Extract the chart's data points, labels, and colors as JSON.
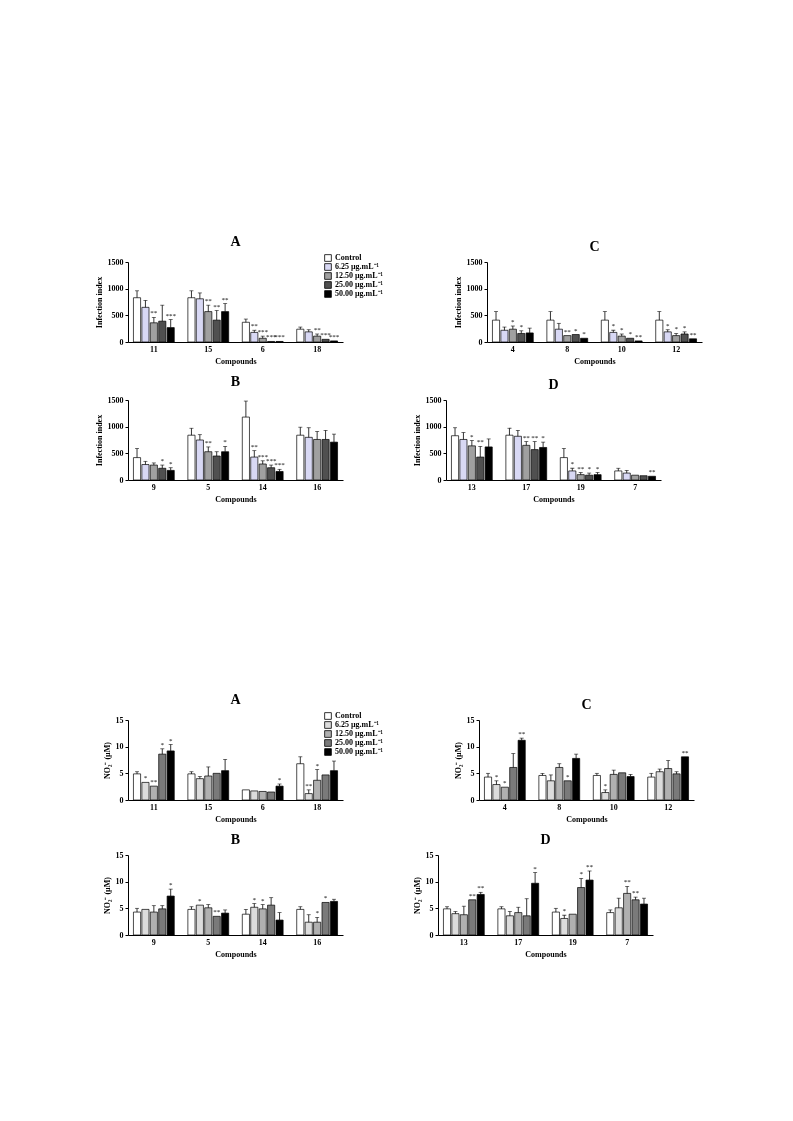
{
  "chart_data": [
    {
      "type": "bar",
      "title": "A",
      "xlabel": "Compounds",
      "ylabel": "Infection index",
      "categories": [
        "11",
        "15",
        "6",
        "18"
      ],
      "ylim": [
        0,
        1500
      ],
      "yticks": [
        0,
        500,
        1000,
        1500
      ],
      "grid": false,
      "legend": "top right",
      "series": [
        {
          "name": "Control",
          "color": "#ffffff",
          "values": [
            830,
            830,
            370,
            240
          ],
          "errors": [
            130,
            130,
            60,
            40
          ],
          "value_labels": [
            null,
            null,
            null,
            null
          ]
        },
        {
          "name": "6.25 µg.mL⁻¹",
          "color": "#d8d8f4",
          "values": [
            650,
            810,
            180,
            190
          ],
          "errors": [
            130,
            110,
            40,
            40
          ],
          "value_labels": [
            null,
            null,
            "**",
            null
          ]
        },
        {
          "name": "12.50 µg.mL⁻¹",
          "color": "#a0a0a0",
          "values": [
            360,
            570,
            70,
            110
          ],
          "errors": [
            100,
            120,
            40,
            40
          ],
          "value_labels": [
            "**",
            "**",
            "***",
            "**"
          ]
        },
        {
          "name": "25.00 µg.mL⁻¹",
          "color": "#505050",
          "values": [
            390,
            410,
            10,
            50
          ],
          "errors": [
            300,
            180,
            null,
            null
          ],
          "value_labels": [
            null,
            "**",
            "***",
            "***"
          ]
        },
        {
          "name": "50.00 µg.mL⁻¹",
          "color": "#000000",
          "values": [
            270,
            570,
            10,
            20
          ],
          "errors": [
            150,
            150,
            null,
            null
          ],
          "value_labels": [
            "***",
            "**",
            "***",
            "***"
          ]
        }
      ]
    },
    {
      "type": "bar",
      "title": "C",
      "xlabel": "Compounds",
      "ylabel": "Infection index",
      "categories": [
        "4",
        "8",
        "10",
        "12"
      ],
      "ylim": [
        0,
        1500
      ],
      "yticks": [
        0,
        500,
        1000,
        1500
      ],
      "grid": false,
      "series": [
        {
          "color": "#ffffff",
          "values": [
            410,
            410,
            410,
            410
          ],
          "errors": [
            160,
            160,
            160,
            160
          ],
          "value_labels": [
            null,
            null,
            null,
            null
          ]
        },
        {
          "color": "#d8d8f4",
          "values": [
            220,
            240,
            180,
            190
          ],
          "errors": [
            60,
            110,
            40,
            40
          ],
          "value_labels": [
            null,
            null,
            "*",
            "*"
          ]
        },
        {
          "color": "#a0a0a0",
          "values": [
            240,
            120,
            110,
            120
          ],
          "errors": [
            60,
            null,
            40,
            40
          ],
          "value_labels": [
            "*",
            "**",
            "*",
            "*"
          ]
        },
        {
          "color": "#505050",
          "values": [
            160,
            140,
            70,
            150
          ],
          "errors": [
            50,
            null,
            null,
            40
          ],
          "value_labels": [
            "*",
            "*",
            "*",
            "*"
          ]
        },
        {
          "color": "#000000",
          "values": [
            170,
            70,
            20,
            60
          ],
          "errors": [
            90,
            null,
            null,
            null
          ],
          "value_labels": [
            null,
            "*",
            "**",
            "**"
          ]
        }
      ]
    },
    {
      "type": "bar",
      "title": "B",
      "xlabel": "Compounds",
      "ylabel": "Infection index",
      "categories": [
        "9",
        "5",
        "14",
        "16"
      ],
      "ylim": [
        0,
        1500
      ],
      "yticks": [
        0,
        500,
        1000,
        1500
      ],
      "grid": false,
      "series": [
        {
          "color": "#ffffff",
          "values": [
            420,
            840,
            1180,
            840
          ],
          "errors": [
            170,
            130,
            300,
            150
          ],
          "value_labels": [
            null,
            null,
            null,
            null
          ]
        },
        {
          "color": "#d8d8f4",
          "values": [
            290,
            750,
            430,
            800
          ],
          "errors": [
            60,
            100,
            120,
            180
          ],
          "value_labels": [
            null,
            null,
            "**",
            null
          ]
        },
        {
          "color": "#a0a0a0",
          "values": [
            280,
            530,
            300,
            760
          ],
          "errors": [
            40,
            90,
            60,
            150
          ],
          "value_labels": [
            null,
            "**",
            "***",
            null
          ]
        },
        {
          "color": "#505050",
          "values": [
            220,
            450,
            230,
            760
          ],
          "errors": [
            60,
            80,
            50,
            170
          ],
          "value_labels": [
            "*",
            null,
            "***",
            null
          ]
        },
        {
          "color": "#000000",
          "values": [
            180,
            530,
            160,
            710
          ],
          "errors": [
            50,
            100,
            40,
            150
          ],
          "value_labels": [
            "*",
            "*",
            "***",
            null
          ]
        }
      ]
    },
    {
      "type": "bar",
      "title": "D",
      "xlabel": "Compounds",
      "ylabel": "Infection index",
      "categories": [
        "13",
        "17",
        "19",
        "7"
      ],
      "ylim": [
        0,
        1500
      ],
      "yticks": [
        0,
        500,
        1000,
        1500
      ],
      "grid": false,
      "series": [
        {
          "color": "#ffffff",
          "values": [
            830,
            840,
            420,
            170
          ],
          "errors": [
            150,
            130,
            170,
            50
          ],
          "value_labels": [
            null,
            null,
            null,
            null
          ]
        },
        {
          "color": "#d8d8f4",
          "values": [
            760,
            820,
            170,
            130
          ],
          "errors": [
            130,
            110,
            50,
            50
          ],
          "value_labels": [
            null,
            null,
            "*",
            null
          ]
        },
        {
          "color": "#a0a0a0",
          "values": [
            640,
            650,
            100,
            90
          ],
          "errors": [
            100,
            70,
            40,
            null
          ],
          "value_labels": [
            "*",
            "**",
            "**",
            null
          ]
        },
        {
          "color": "#505050",
          "values": [
            430,
            570,
            90,
            80
          ],
          "errors": [
            200,
            150,
            40,
            null
          ],
          "value_labels": [
            "**",
            "**",
            "*",
            null
          ]
        },
        {
          "color": "#000000",
          "values": [
            620,
            610,
            100,
            70
          ],
          "errors": [
            150,
            100,
            40,
            null
          ],
          "value_labels": [
            null,
            "*",
            "*",
            "**"
          ]
        }
      ]
    },
    {
      "type": "bar",
      "title": "A",
      "xlabel": "Compounds",
      "ylabel": "NO₂⁻ (µM)",
      "categories": [
        "11",
        "15",
        "6",
        "18"
      ],
      "ylim": [
        0,
        15
      ],
      "yticks": [
        0,
        5,
        10,
        15
      ],
      "grid": false,
      "legend": "top right",
      "series": [
        {
          "name": "Control",
          "color": "#ffffff",
          "values": [
            4.9,
            4.9,
            1.9,
            6.8
          ],
          "errors": [
            0.4,
            0.4,
            null,
            1.3
          ],
          "value_labels": [
            null,
            null,
            null,
            null
          ]
        },
        {
          "name": "6.25 µg.mL⁻¹",
          "color": "#dcdcdc",
          "values": [
            3.3,
            4.0,
            1.7,
            1.2
          ],
          "errors": [
            null,
            0.4,
            null,
            0.7
          ],
          "value_labels": [
            "*",
            null,
            null,
            "**"
          ]
        },
        {
          "name": "12.50 µg.mL⁻¹",
          "color": "#b0b0b0",
          "values": [
            2.6,
            4.5,
            1.6,
            3.7
          ],
          "errors": [
            null,
            1.7,
            null,
            2.0
          ],
          "value_labels": [
            "**",
            null,
            null,
            "*"
          ]
        },
        {
          "name": "25.00 µg.mL⁻¹",
          "color": "#7a7a7a",
          "values": [
            8.6,
            5.0,
            1.5,
            4.7
          ],
          "errors": [
            1.0,
            null,
            null,
            null
          ],
          "value_labels": [
            "*",
            null,
            null,
            null
          ]
        },
        {
          "name": "50.00 µg.mL⁻¹",
          "color": "#000000",
          "values": [
            9.2,
            5.5,
            2.6,
            5.5
          ],
          "errors": [
            1.2,
            2.1,
            0.4,
            1.8
          ],
          "value_labels": [
            "*",
            null,
            "*",
            null
          ]
        }
      ]
    },
    {
      "type": "bar",
      "title": "C",
      "xlabel": "Compounds",
      "ylabel": "NO₂⁻ (µM)",
      "categories": [
        "4",
        "8",
        "10",
        "12"
      ],
      "ylim": [
        0,
        15
      ],
      "yticks": [
        0,
        5,
        10,
        15
      ],
      "grid": false,
      "series": [
        {
          "color": "#ffffff",
          "values": [
            4.3,
            4.6,
            4.6,
            4.3
          ],
          "errors": [
            0.7,
            0.4,
            0.4,
            0.7
          ],
          "value_labels": [
            null,
            null,
            null,
            null
          ]
        },
        {
          "color": "#dcdcdc",
          "values": [
            2.9,
            3.6,
            1.4,
            5.3
          ],
          "errors": [
            0.7,
            1.1,
            0.5,
            0.5
          ],
          "value_labels": [
            "*",
            null,
            "*",
            null
          ]
        },
        {
          "color": "#b0b0b0",
          "values": [
            2.4,
            6.1,
            4.8,
            5.9
          ],
          "errors": [
            null,
            0.7,
            0.8,
            1.5
          ],
          "value_labels": [
            "*",
            null,
            null,
            null
          ]
        },
        {
          "color": "#7a7a7a",
          "values": [
            6.1,
            3.6,
            5.1,
            4.9
          ],
          "errors": [
            2.6,
            null,
            null,
            0.4
          ],
          "value_labels": [
            null,
            "*",
            null,
            null
          ]
        },
        {
          "color": "#000000",
          "values": [
            11.2,
            7.8,
            4.4,
            8.1
          ],
          "errors": [
            0.4,
            0.8,
            0.4,
            null
          ],
          "value_labels": [
            "**",
            null,
            null,
            "**"
          ]
        }
      ]
    },
    {
      "type": "bar",
      "title": "B",
      "xlabel": "Compounds",
      "ylabel": "NO₂⁻ (µM)",
      "categories": [
        "9",
        "5",
        "14",
        "16"
      ],
      "ylim": [
        0,
        15
      ],
      "yticks": [
        0,
        5,
        10,
        15
      ],
      "grid": false,
      "series": [
        {
          "color": "#ffffff",
          "values": [
            4.3,
            4.8,
            3.9,
            4.8
          ],
          "errors": [
            0.7,
            0.5,
            0.9,
            0.5
          ],
          "value_labels": [
            null,
            null,
            null,
            null
          ]
        },
        {
          "color": "#dcdcdc",
          "values": [
            4.8,
            5.6,
            5.2,
            2.4
          ],
          "errors": [
            null,
            null,
            0.7,
            1.4
          ],
          "value_labels": [
            null,
            "*",
            "*",
            null
          ]
        },
        {
          "color": "#b0b0b0",
          "values": [
            4.3,
            5.1,
            4.9,
            2.4
          ],
          "errors": [
            1.2,
            0.6,
            0.8,
            0.9
          ],
          "value_labels": [
            null,
            null,
            "*",
            "*"
          ]
        },
        {
          "color": "#7a7a7a",
          "values": [
            4.9,
            3.5,
            5.6,
            6.1
          ],
          "errors": [
            0.6,
            null,
            1.4,
            null
          ],
          "value_labels": [
            null,
            "**",
            null,
            "*"
          ]
        },
        {
          "color": "#000000",
          "values": [
            7.3,
            4.1,
            2.8,
            6.3
          ],
          "errors": [
            1.3,
            0.6,
            1.4,
            0.4
          ],
          "value_labels": [
            "*",
            null,
            null,
            null
          ]
        }
      ]
    },
    {
      "type": "bar",
      "title": "D",
      "xlabel": "Compounds",
      "ylabel": "NO₂⁻ (µM)",
      "categories": [
        "13",
        "17",
        "19",
        "7"
      ],
      "ylim": [
        0,
        15
      ],
      "yticks": [
        0,
        5,
        10,
        15
      ],
      "grid": false,
      "series": [
        {
          "color": "#ffffff",
          "values": [
            4.9,
            4.9,
            4.3,
            4.2
          ],
          "errors": [
            0.4,
            0.4,
            0.7,
            0.5
          ],
          "value_labels": [
            null,
            null,
            null,
            null
          ]
        },
        {
          "color": "#dcdcdc",
          "values": [
            4.0,
            3.6,
            3.1,
            5.1
          ],
          "errors": [
            0.4,
            0.8,
            0.6,
            1.8
          ],
          "value_labels": [
            null,
            null,
            "*",
            null
          ]
        },
        {
          "color": "#b0b0b0",
          "values": [
            3.8,
            4.2,
            3.9,
            7.8
          ],
          "errors": [
            1.6,
            1.0,
            null,
            1.3
          ],
          "value_labels": [
            null,
            null,
            null,
            "**"
          ]
        },
        {
          "color": "#7a7a7a",
          "values": [
            6.6,
            3.6,
            8.9,
            6.6
          ],
          "errors": [
            null,
            3.2,
            1.7,
            0.5
          ],
          "value_labels": [
            "**",
            null,
            "*",
            "**"
          ]
        },
        {
          "color": "#000000",
          "values": [
            7.6,
            9.7,
            10.3,
            5.8
          ],
          "errors": [
            0.4,
            2.0,
            1.7,
            1.1
          ],
          "value_labels": [
            "**",
            "*",
            "**",
            null
          ]
        }
      ]
    }
  ]
}
